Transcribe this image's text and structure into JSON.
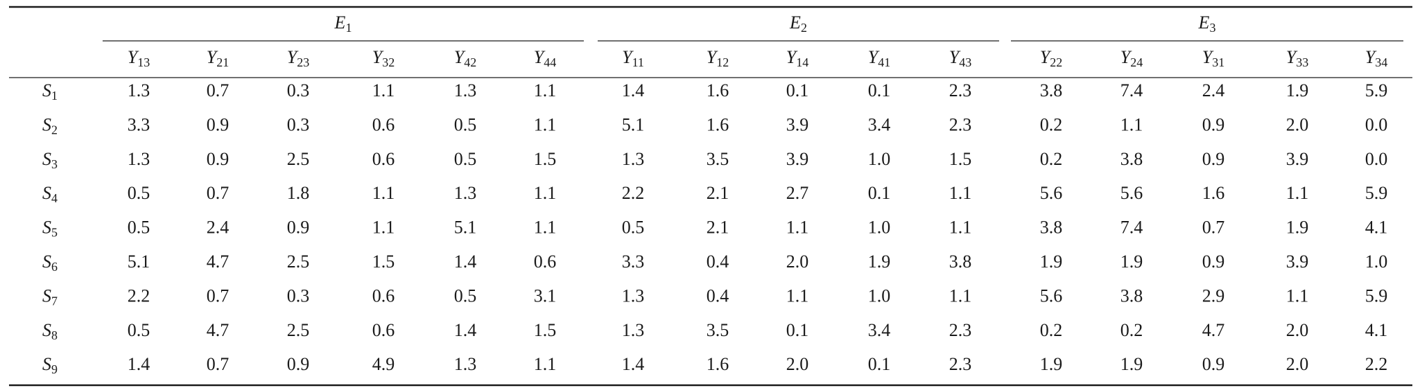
{
  "table": {
    "groups": [
      {
        "label": {
          "symbol": "E",
          "subscript": "1"
        },
        "columns": [
          {
            "symbol": "Y",
            "subscript": "13"
          },
          {
            "symbol": "Y",
            "subscript": "21"
          },
          {
            "symbol": "Y",
            "subscript": "23"
          },
          {
            "symbol": "Y",
            "subscript": "32"
          },
          {
            "symbol": "Y",
            "subscript": "42"
          },
          {
            "symbol": "Y",
            "subscript": "44"
          }
        ]
      },
      {
        "label": {
          "symbol": "E",
          "subscript": "2"
        },
        "columns": [
          {
            "symbol": "Y",
            "subscript": "11"
          },
          {
            "symbol": "Y",
            "subscript": "12"
          },
          {
            "symbol": "Y",
            "subscript": "14"
          },
          {
            "symbol": "Y",
            "subscript": "41"
          },
          {
            "symbol": "Y",
            "subscript": "43"
          }
        ]
      },
      {
        "label": {
          "symbol": "E",
          "subscript": "3"
        },
        "columns": [
          {
            "symbol": "Y",
            "subscript": "22"
          },
          {
            "symbol": "Y",
            "subscript": "24"
          },
          {
            "symbol": "Y",
            "subscript": "31"
          },
          {
            "symbol": "Y",
            "subscript": "33"
          },
          {
            "symbol": "Y",
            "subscript": "34"
          }
        ]
      }
    ],
    "rows": [
      {
        "label": {
          "symbol": "S",
          "subscript": "1"
        },
        "values": [
          "1.3",
          "0.7",
          "0.3",
          "1.1",
          "1.3",
          "1.1",
          "1.4",
          "1.6",
          "0.1",
          "0.1",
          "2.3",
          "3.8",
          "7.4",
          "2.4",
          "1.9",
          "5.9"
        ]
      },
      {
        "label": {
          "symbol": "S",
          "subscript": "2"
        },
        "values": [
          "3.3",
          "0.9",
          "0.3",
          "0.6",
          "0.5",
          "1.1",
          "5.1",
          "1.6",
          "3.9",
          "3.4",
          "2.3",
          "0.2",
          "1.1",
          "0.9",
          "2.0",
          "0.0"
        ]
      },
      {
        "label": {
          "symbol": "S",
          "subscript": "3"
        },
        "values": [
          "1.3",
          "0.9",
          "2.5",
          "0.6",
          "0.5",
          "1.5",
          "1.3",
          "3.5",
          "3.9",
          "1.0",
          "1.5",
          "0.2",
          "3.8",
          "0.9",
          "3.9",
          "0.0"
        ]
      },
      {
        "label": {
          "symbol": "S",
          "subscript": "4"
        },
        "values": [
          "0.5",
          "0.7",
          "1.8",
          "1.1",
          "1.3",
          "1.1",
          "2.2",
          "2.1",
          "2.7",
          "0.1",
          "1.1",
          "5.6",
          "5.6",
          "1.6",
          "1.1",
          "5.9"
        ]
      },
      {
        "label": {
          "symbol": "S",
          "subscript": "5"
        },
        "values": [
          "0.5",
          "2.4",
          "0.9",
          "1.1",
          "5.1",
          "1.1",
          "0.5",
          "2.1",
          "1.1",
          "1.0",
          "1.1",
          "3.8",
          "7.4",
          "0.7",
          "1.9",
          "4.1"
        ]
      },
      {
        "label": {
          "symbol": "S",
          "subscript": "6"
        },
        "values": [
          "5.1",
          "4.7",
          "2.5",
          "1.5",
          "1.4",
          "0.6",
          "3.3",
          "0.4",
          "2.0",
          "1.9",
          "3.8",
          "1.9",
          "1.9",
          "0.9",
          "3.9",
          "1.0"
        ]
      },
      {
        "label": {
          "symbol": "S",
          "subscript": "7"
        },
        "values": [
          "2.2",
          "0.7",
          "0.3",
          "0.6",
          "0.5",
          "3.1",
          "1.3",
          "0.4",
          "1.1",
          "1.0",
          "1.1",
          "5.6",
          "3.8",
          "2.9",
          "1.1",
          "5.9"
        ]
      },
      {
        "label": {
          "symbol": "S",
          "subscript": "8"
        },
        "values": [
          "0.5",
          "4.7",
          "2.5",
          "0.6",
          "1.4",
          "1.5",
          "1.3",
          "3.5",
          "0.1",
          "3.4",
          "2.3",
          "0.2",
          "0.2",
          "4.7",
          "2.0",
          "4.1"
        ]
      },
      {
        "label": {
          "symbol": "S",
          "subscript": "9"
        },
        "values": [
          "1.4",
          "0.7",
          "0.9",
          "4.9",
          "1.3",
          "1.1",
          "1.4",
          "1.6",
          "2.0",
          "0.1",
          "2.3",
          "1.9",
          "1.9",
          "0.9",
          "2.0",
          "2.2"
        ]
      }
    ]
  }
}
